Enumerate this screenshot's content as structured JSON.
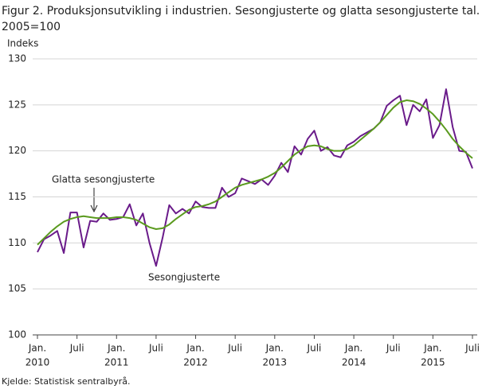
{
  "chart_data": {
    "type": "line",
    "title": "Figur 2. Produksjonsutvikling i industrien. Sesongjusterte og glatta sesongjusterte tal.",
    "subtitle": "2005=100",
    "y_label": "Indeks",
    "source": "Kjelde: Statistisk sentralbyrå.",
    "categories": [
      [
        "Jan.",
        "2010"
      ],
      null,
      null,
      null,
      null,
      null,
      "Juli",
      null,
      null,
      null,
      null,
      null,
      [
        "Jan.",
        "2011"
      ],
      null,
      null,
      null,
      null,
      null,
      "Juli",
      null,
      null,
      null,
      null,
      null,
      [
        "Jan.",
        "2012"
      ],
      null,
      null,
      null,
      null,
      null,
      "Juli",
      null,
      null,
      null,
      null,
      null,
      [
        "Jan.",
        "2013"
      ],
      null,
      null,
      null,
      null,
      null,
      "Juli",
      null,
      null,
      null,
      null,
      null,
      [
        "Jan.",
        "2014"
      ],
      null,
      null,
      null,
      null,
      null,
      "Juli",
      null,
      null,
      null,
      null,
      null,
      [
        "Jan.",
        "2015"
      ],
      null,
      null,
      null,
      null,
      null,
      "Juli"
    ],
    "series": [
      {
        "name": "Sesongjusterte",
        "color": "#6a1b8a",
        "values": [
          109.0,
          110.4,
          110.8,
          111.3,
          108.9,
          113.3,
          113.3,
          109.5,
          112.4,
          112.3,
          113.2,
          112.5,
          112.6,
          112.8,
          114.2,
          111.9,
          113.2,
          110.0,
          107.5,
          110.6,
          114.1,
          113.2,
          113.7,
          113.2,
          114.5,
          113.9,
          113.8,
          113.8,
          116.0,
          115.0,
          115.4,
          117.0,
          116.7,
          116.4,
          116.9,
          116.3,
          117.3,
          118.7,
          117.7,
          120.5,
          119.6,
          121.3,
          122.2,
          120.0,
          120.4,
          119.5,
          119.3,
          120.6,
          121.0,
          121.6,
          122.0,
          122.4,
          123.1,
          124.9,
          125.5,
          126.0,
          122.8,
          125.0,
          124.3,
          125.6,
          121.4,
          122.8,
          126.7,
          122.6,
          120.0,
          119.9,
          118.1
        ]
      },
      {
        "name": "Glatta sesongjusterte",
        "color": "#5a9a1e",
        "values": [
          109.8,
          110.5,
          111.2,
          111.8,
          112.3,
          112.6,
          112.8,
          112.9,
          112.8,
          112.7,
          112.7,
          112.7,
          112.8,
          112.8,
          112.7,
          112.5,
          112.1,
          111.7,
          111.5,
          111.6,
          112.0,
          112.6,
          113.1,
          113.6,
          113.9,
          114.0,
          114.2,
          114.5,
          115.0,
          115.5,
          116.0,
          116.3,
          116.5,
          116.7,
          116.9,
          117.2,
          117.6,
          118.2,
          118.9,
          119.6,
          120.1,
          120.5,
          120.6,
          120.5,
          120.2,
          120.0,
          120.0,
          120.2,
          120.6,
          121.2,
          121.8,
          122.4,
          123.1,
          123.9,
          124.7,
          125.3,
          125.5,
          125.4,
          125.1,
          124.6,
          124.0,
          123.2,
          122.3,
          121.3,
          120.5,
          119.8,
          119.2
        ]
      }
    ],
    "ylim": [
      100,
      130
    ],
    "yticks": [
      100,
      105,
      110,
      115,
      120,
      125,
      130
    ],
    "grid": true
  }
}
